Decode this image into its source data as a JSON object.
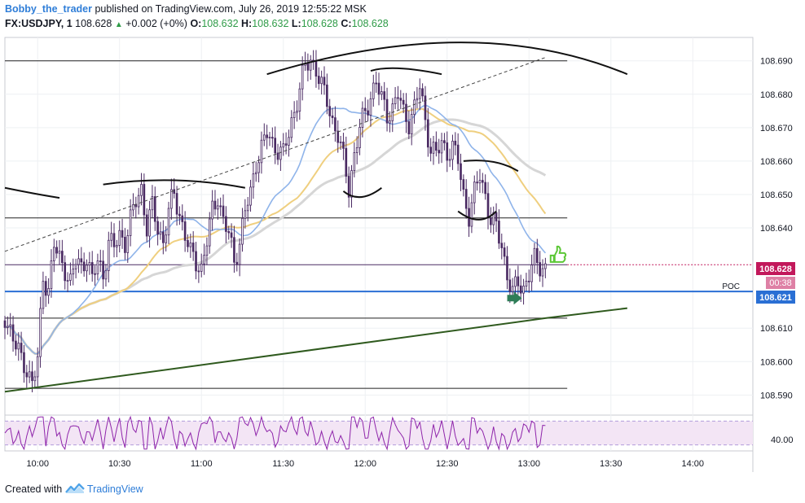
{
  "header": {
    "author": "Bobby_the_trader",
    "published": "published on TradingView.com, July 26, 2019 12:55:22 MSK",
    "symbol": "FX:USDJPY, 1",
    "last": "108.628",
    "change": "+0.002 (+0%)",
    "open_label": "O:",
    "open": "108.632",
    "high_label": "H:",
    "high": "108.632",
    "low_label": "L:",
    "low": "108.628",
    "close_label": "C:",
    "close": "108.628"
  },
  "footer": {
    "created_with": "Created with",
    "brand": "TradingView"
  },
  "colors": {
    "candle_body": "#ffffff",
    "candle_border": "#4a2a63",
    "ma_fast": "#8fb4ea",
    "ma_mid": "#efcf7f",
    "ma_slow": "#d6d6d6",
    "support_trend": "#2f5a1e",
    "poc_line": "#2a6fd4",
    "price_tag": "#c2185b",
    "rsi_line": "#8e24aa",
    "rsi_bg": "#f3e5f5",
    "arrow": "#2e7d57",
    "thumb": "#5cc736"
  },
  "chart_data": {
    "type": "candlestick",
    "ylim": [
      108.584,
      108.697
    ],
    "y_ticks": [
      "108.690",
      "108.680",
      "108.670",
      "108.660",
      "108.650",
      "108.640",
      "108.610",
      "108.600",
      "108.590"
    ],
    "x_ticks": [
      "10:00",
      "10:30",
      "11:00",
      "11:30",
      "12:00",
      "12:30",
      "13:00",
      "13:30",
      "14:00"
    ],
    "x_tick_minutes": [
      0,
      30,
      60,
      90,
      120,
      150,
      180,
      210,
      240
    ],
    "x_range_minutes": [
      -12,
      262
    ],
    "price_tags": {
      "last": "108.628",
      "countdown": "00:38",
      "poc": "108.621"
    },
    "poc_label": "POC",
    "horizontal_levels": [
      108.69,
      108.643,
      108.629,
      108.621,
      108.613,
      108.592
    ],
    "support_trendline": [
      [
        -12,
        108.591
      ],
      [
        186,
        108.613
      ],
      [
        216,
        108.616
      ]
    ],
    "dashed_trendline": [
      [
        -12,
        108.633
      ],
      [
        186,
        108.691
      ]
    ],
    "rsi": {
      "tick": "40.00",
      "ylim": [
        20,
        80
      ],
      "bands": [
        30,
        70
      ]
    },
    "candle_keypoints": [
      [
        -12,
        108.613
      ],
      [
        -10,
        108.61
      ],
      [
        -8,
        108.605
      ],
      [
        -6,
        108.6
      ],
      [
        -4,
        108.598
      ],
      [
        -2,
        108.594
      ],
      [
        0,
        108.6
      ],
      [
        2,
        108.625
      ],
      [
        4,
        108.622
      ],
      [
        6,
        108.635
      ],
      [
        8,
        108.63
      ],
      [
        10,
        108.628
      ],
      [
        12,
        108.624
      ],
      [
        14,
        108.63
      ],
      [
        16,
        108.628
      ],
      [
        18,
        108.632
      ],
      [
        20,
        108.624
      ],
      [
        22,
        108.63
      ],
      [
        24,
        108.626
      ],
      [
        26,
        108.636
      ],
      [
        28,
        108.634
      ],
      [
        30,
        108.638
      ],
      [
        32,
        108.636
      ],
      [
        34,
        108.642
      ],
      [
        36,
        108.648
      ],
      [
        38,
        108.652
      ],
      [
        40,
        108.64
      ],
      [
        42,
        108.646
      ],
      [
        44,
        108.64
      ],
      [
        46,
        108.636
      ],
      [
        48,
        108.645
      ],
      [
        50,
        108.65
      ],
      [
        52,
        108.644
      ],
      [
        54,
        108.638
      ],
      [
        56,
        108.632
      ],
      [
        58,
        108.63
      ],
      [
        60,
        108.628
      ],
      [
        62,
        108.636
      ],
      [
        64,
        108.645
      ],
      [
        66,
        108.65
      ],
      [
        68,
        108.642
      ],
      [
        70,
        108.638
      ],
      [
        72,
        108.63
      ],
      [
        74,
        108.636
      ],
      [
        76,
        108.645
      ],
      [
        78,
        108.65
      ],
      [
        80,
        108.66
      ],
      [
        82,
        108.664
      ],
      [
        84,
        108.668
      ],
      [
        86,
        108.665
      ],
      [
        88,
        108.664
      ],
      [
        90,
        108.662
      ],
      [
        92,
        108.668
      ],
      [
        94,
        108.675
      ],
      [
        96,
        108.682
      ],
      [
        98,
        108.688
      ],
      [
        100,
        108.69
      ],
      [
        102,
        108.688
      ],
      [
        104,
        108.682
      ],
      [
        106,
        108.678
      ],
      [
        108,
        108.672
      ],
      [
        110,
        108.668
      ],
      [
        112,
        108.66
      ],
      [
        114,
        108.652
      ],
      [
        116,
        108.662
      ],
      [
        118,
        108.67
      ],
      [
        120,
        108.674
      ],
      [
        122,
        108.68
      ],
      [
        124,
        108.684
      ],
      [
        126,
        108.678
      ],
      [
        128,
        108.674
      ],
      [
        130,
        108.676
      ],
      [
        132,
        108.68
      ],
      [
        134,
        108.674
      ],
      [
        136,
        108.672
      ],
      [
        138,
        108.676
      ],
      [
        140,
        108.682
      ],
      [
        142,
        108.672
      ],
      [
        144,
        108.664
      ],
      [
        146,
        108.662
      ],
      [
        148,
        108.665
      ],
      [
        150,
        108.663
      ],
      [
        152,
        108.664
      ],
      [
        154,
        108.66
      ],
      [
        156,
        108.65
      ],
      [
        158,
        108.644
      ],
      [
        160,
        108.65
      ],
      [
        162,
        108.656
      ],
      [
        164,
        108.65
      ],
      [
        166,
        108.642
      ],
      [
        168,
        108.64
      ],
      [
        170,
        108.635
      ],
      [
        172,
        108.626
      ],
      [
        174,
        108.62
      ],
      [
        176,
        108.624
      ],
      [
        178,
        108.622
      ],
      [
        180,
        108.626
      ],
      [
        182,
        108.63
      ],
      [
        184,
        108.629
      ],
      [
        186,
        108.628
      ]
    ]
  }
}
